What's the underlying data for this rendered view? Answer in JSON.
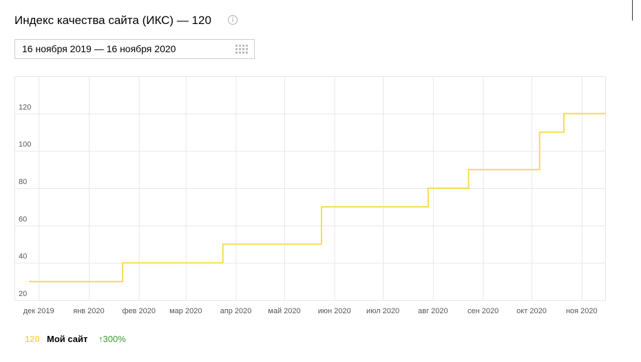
{
  "chart_data": {
    "type": "line",
    "title": "Индекс качества сайта (ИКС) — 120",
    "date_range": "16 ноября 2019 — 16 ноября 2020",
    "x": [
      "2019-11-25",
      "2020-01-22",
      "2020-03-24",
      "2020-05-24",
      "2020-07-29",
      "2020-08-23",
      "2020-10-06",
      "2020-10-21",
      "2020-11-16"
    ],
    "series": [
      {
        "name": "Мой сайт",
        "color": "#fbdb4f",
        "values": [
          30,
          40,
          50,
          70,
          80,
          90,
          110,
          120,
          120
        ],
        "current": 120,
        "change": "↑300%"
      }
    ],
    "step": true,
    "xlim": [
      "2019-11-16",
      "2020-11-16"
    ],
    "xticks": [
      {
        "value": "2019-12-01",
        "label": "дек 2019"
      },
      {
        "value": "2020-01-01",
        "label": "янв 2020"
      },
      {
        "value": "2020-02-01",
        "label": "фев 2020"
      },
      {
        "value": "2020-03-01",
        "label": "мар 2020"
      },
      {
        "value": "2020-04-01",
        "label": "апр 2020"
      },
      {
        "value": "2020-05-01",
        "label": "май 2020"
      },
      {
        "value": "2020-06-01",
        "label": "июн 2020"
      },
      {
        "value": "2020-07-01",
        "label": "июл 2020"
      },
      {
        "value": "2020-08-01",
        "label": "авг 2020"
      },
      {
        "value": "2020-09-01",
        "label": "сен 2020"
      },
      {
        "value": "2020-10-01",
        "label": "окт 2020"
      },
      {
        "value": "2020-11-01",
        "label": "ноя 2020"
      }
    ],
    "ylim": [
      20,
      140
    ],
    "yticks": [
      20,
      40,
      60,
      80,
      100,
      120
    ],
    "grid": true
  }
}
